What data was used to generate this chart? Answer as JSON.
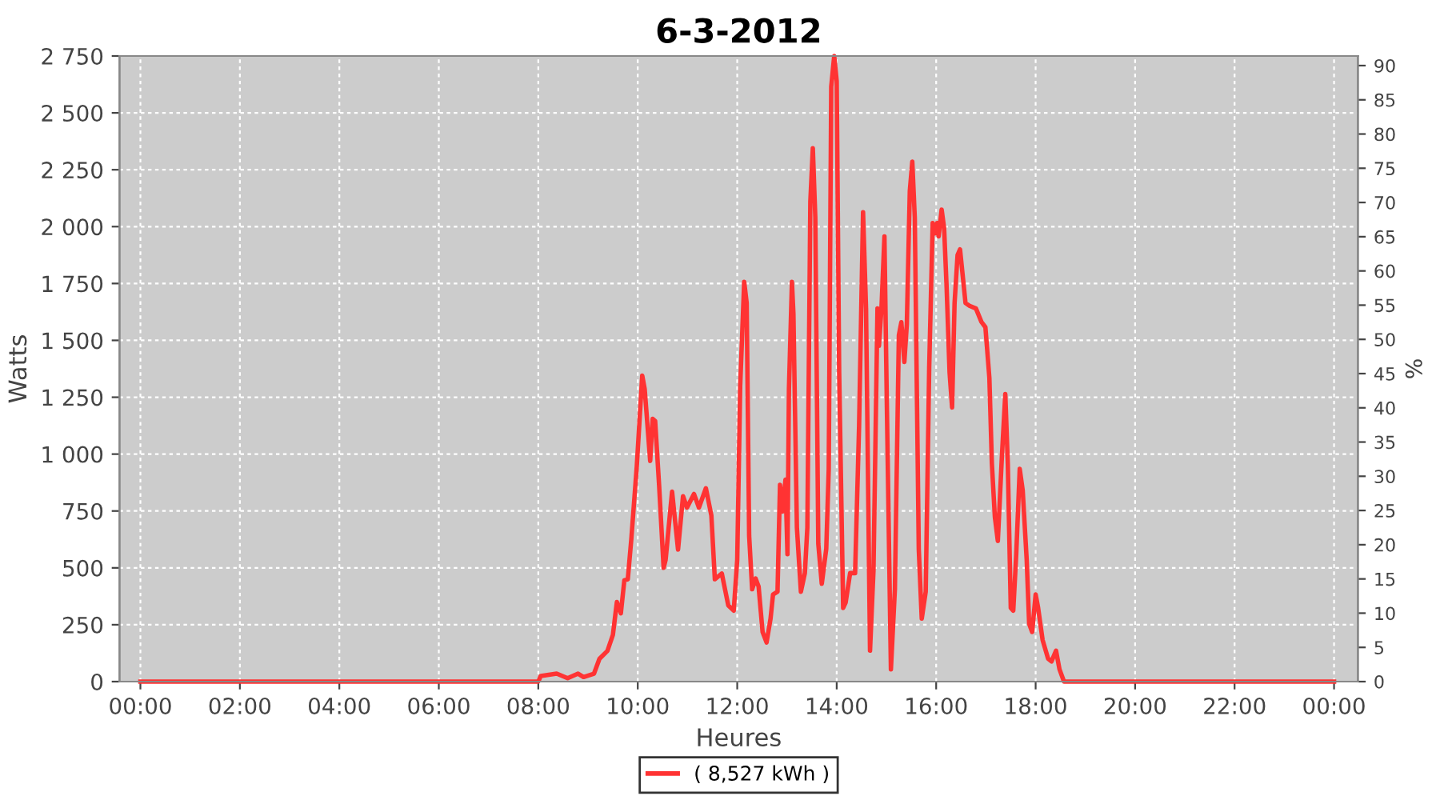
{
  "chart_data": {
    "type": "line",
    "title": "6-3-2012",
    "xlabel": "Heures",
    "ylabel": "Watts",
    "y2label": "%",
    "x": [
      0,
      8.0,
      8.05,
      8.37,
      8.59,
      8.8,
      8.91,
      9.12,
      9.23,
      9.39,
      9.5,
      9.58,
      9.66,
      9.73,
      9.8,
      9.87,
      9.98,
      10.09,
      10.14,
      10.25,
      10.3,
      10.35,
      10.43,
      10.52,
      10.56,
      10.69,
      10.81,
      10.91,
      10.99,
      11.13,
      11.23,
      11.37,
      11.48,
      11.55,
      11.69,
      11.82,
      11.93,
      12.0,
      12.06,
      12.14,
      12.19,
      12.24,
      12.3,
      12.37,
      12.43,
      12.51,
      12.59,
      12.67,
      12.72,
      12.81,
      12.86,
      12.91,
      12.97,
      13.01,
      13.04,
      13.1,
      13.13,
      13.2,
      13.28,
      13.36,
      13.41,
      13.47,
      13.52,
      13.57,
      13.63,
      13.7,
      13.79,
      13.84,
      13.89,
      13.95,
      14.0,
      14.05,
      14.13,
      14.18,
      14.27,
      14.37,
      14.45,
      14.53,
      14.59,
      14.67,
      14.74,
      14.82,
      14.85,
      14.9,
      14.96,
      15.01,
      15.09,
      15.17,
      15.25,
      15.3,
      15.36,
      15.41,
      15.47,
      15.52,
      15.57,
      15.65,
      15.71,
      15.79,
      15.86,
      15.93,
      15.97,
      16.02,
      16.05,
      16.11,
      16.16,
      16.21,
      16.27,
      16.32,
      16.37,
      16.43,
      16.48,
      16.59,
      16.67,
      16.8,
      16.91,
      16.99,
      17.07,
      17.12,
      17.18,
      17.24,
      17.32,
      17.39,
      17.44,
      17.5,
      17.55,
      17.61,
      17.68,
      17.74,
      17.82,
      17.87,
      17.93,
      18.0,
      18.05,
      18.14,
      18.25,
      18.32,
      18.41,
      18.48,
      18.57,
      24.0
    ],
    "series": [
      {
        "name": "( 8,527 kWh )",
        "color": "#ff3333",
        "values": [
          0,
          0,
          25,
          35,
          15,
          35,
          20,
          35,
          100,
          135,
          205,
          350,
          300,
          445,
          450,
          625,
          945,
          1345,
          1285,
          970,
          1155,
          1145,
          860,
          500,
          535,
          835,
          580,
          815,
          765,
          825,
          765,
          850,
          730,
          450,
          475,
          335,
          312,
          535,
          1300,
          1757,
          1665,
          640,
          406,
          453,
          418,
          218,
          172,
          277,
          383,
          395,
          865,
          747,
          888,
          560,
          1288,
          1757,
          1617,
          677,
          395,
          477,
          677,
          2110,
          2345,
          2040,
          606,
          430,
          583,
          935,
          2615,
          2750,
          2640,
          1358,
          324,
          348,
          477,
          477,
          1123,
          2063,
          1640,
          136,
          489,
          1640,
          1476,
          1640,
          1957,
          1194,
          54,
          406,
          1523,
          1580,
          1405,
          1570,
          2157,
          2286,
          2040,
          583,
          277,
          395,
          1382,
          2016,
          1970,
          2016,
          1957,
          2075,
          1993,
          1734,
          1358,
          1205,
          1664,
          1875,
          1900,
          1664,
          1652,
          1640,
          1581,
          1558,
          1335,
          959,
          724,
          618,
          982,
          1264,
          959,
          324,
          312,
          560,
          935,
          841,
          536,
          254,
          218,
          383,
          324,
          183,
          101,
          89,
          136,
          54,
          0,
          0
        ]
      }
    ],
    "xlim": [
      -0.42,
      24.48
    ],
    "xticks": [
      {
        "value": 0,
        "label": "00:00"
      },
      {
        "value": 2,
        "label": "02:00"
      },
      {
        "value": 4,
        "label": "04:00"
      },
      {
        "value": 6,
        "label": "06:00"
      },
      {
        "value": 8,
        "label": "08:00"
      },
      {
        "value": 10,
        "label": "10:00"
      },
      {
        "value": 12,
        "label": "12:00"
      },
      {
        "value": 14,
        "label": "14:00"
      },
      {
        "value": 16,
        "label": "16:00"
      },
      {
        "value": 18,
        "label": "18:00"
      },
      {
        "value": 20,
        "label": "20:00"
      },
      {
        "value": 22,
        "label": "22:00"
      },
      {
        "value": 24,
        "label": "00:00"
      }
    ],
    "ylim": [
      0,
      2750
    ],
    "yticks": [
      0,
      250,
      500,
      750,
      {
        "value": 1000,
        "label": "1 000"
      },
      {
        "value": 1250,
        "label": "1 250"
      },
      {
        "value": 1500,
        "label": "1 500"
      },
      {
        "value": 1750,
        "label": "1 750"
      },
      {
        "value": 2000,
        "label": "2 000"
      },
      {
        "value": 2250,
        "label": "2 250"
      },
      {
        "value": 2500,
        "label": "2 500"
      },
      {
        "value": 2750,
        "label": "2 750"
      }
    ],
    "y2lim": [
      0,
      91.4
    ],
    "y2ticks": [
      0,
      5,
      10,
      15,
      20,
      25,
      30,
      35,
      40,
      45,
      50,
      55,
      60,
      65,
      70,
      75,
      80,
      85,
      90
    ],
    "grid": true,
    "legend": "bottom",
    "line_style": "solid",
    "marker": "none"
  }
}
